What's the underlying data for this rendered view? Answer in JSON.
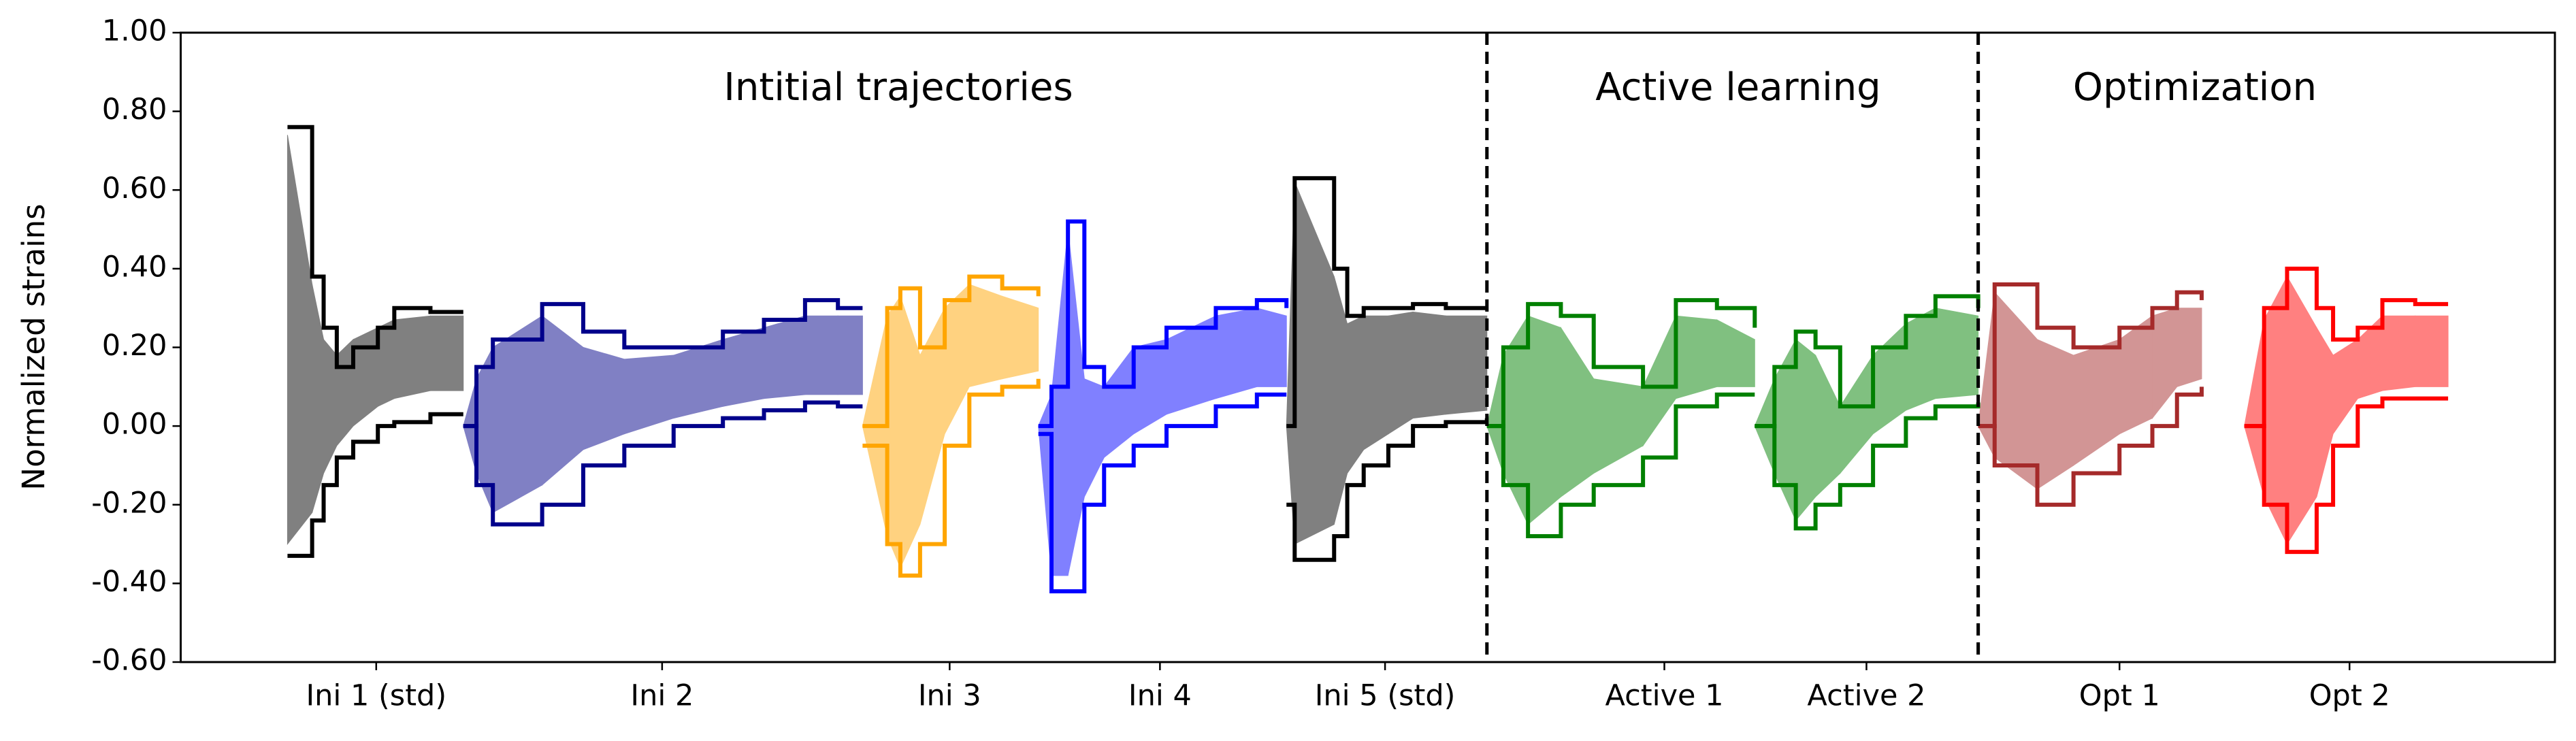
{
  "chart_data": {
    "type": "envelope",
    "y_label": "Normalized strains",
    "ylim": [
      -0.6,
      1.0
    ],
    "yticks": [
      {
        "value": -0.6,
        "label": "-0.60"
      },
      {
        "value": -0.4,
        "label": "-0.40"
      },
      {
        "value": -0.2,
        "label": "-0.20"
      },
      {
        "value": 0,
        "label": "0.00"
      },
      {
        "value": 0.2,
        "label": "0.20"
      },
      {
        "value": 0.4,
        "label": "0.40"
      },
      {
        "value": 0.6,
        "label": "0.60"
      },
      {
        "value": 0.8,
        "label": "0.80"
      },
      {
        "value": 1.0,
        "label": "1.00"
      }
    ],
    "xlim": [
      0,
      1445
    ],
    "xticks": [
      {
        "value": 119,
        "label": "Ini 1 (std)"
      },
      {
        "value": 293,
        "label": "Ini 2"
      },
      {
        "value": 468,
        "label": "Ini 3"
      },
      {
        "value": 596,
        "label": "Ini 4"
      },
      {
        "value": 733,
        "label": "Ini 5 (std)"
      },
      {
        "value": 903,
        "label": "Active 1"
      },
      {
        "value": 1026,
        "label": "Active 2"
      },
      {
        "value": 1180,
        "label": "Opt 1"
      },
      {
        "value": 1320,
        "label": "Opt 2"
      }
    ],
    "dividers": [
      795,
      1094
    ],
    "sections": [
      "Intitial trajectories",
      "Active learning",
      "Optimization"
    ],
    "series": [
      {
        "line_color": "#000000",
        "fill_color": "#808080",
        "x": [
          65,
          80,
          87,
          95,
          105,
          120,
          130,
          152,
          172
        ],
        "upper": [
          0.76,
          0.38,
          0.25,
          0.15,
          0.2,
          0.25,
          0.3,
          0.29,
          0.29
        ],
        "lower": [
          -0.33,
          -0.24,
          -0.15,
          -0.08,
          -0.04,
          0.0,
          0.01,
          0.03,
          0.03
        ],
        "fill_upper": [
          0.74,
          0.36,
          0.22,
          0.18,
          0.22,
          0.25,
          0.27,
          0.28,
          0.28
        ],
        "fill_lower": [
          -0.3,
          -0.22,
          -0.12,
          -0.05,
          0.0,
          0.05,
          0.07,
          0.09,
          0.09
        ]
      },
      {
        "line_color": "#00008b",
        "fill_color": "#8080c4",
        "x": [
          172,
          180,
          190,
          220,
          245,
          270,
          300,
          330,
          355,
          380,
          400,
          415
        ],
        "upper": [
          0.0,
          0.15,
          0.22,
          0.31,
          0.24,
          0.2,
          0.2,
          0.24,
          0.27,
          0.32,
          0.3,
          0.3
        ],
        "lower": [
          0.0,
          -0.15,
          -0.25,
          -0.2,
          -0.1,
          -0.05,
          0.0,
          0.02,
          0.04,
          0.06,
          0.05,
          0.05
        ],
        "fill_upper": [
          0.0,
          0.12,
          0.2,
          0.28,
          0.2,
          0.17,
          0.18,
          0.22,
          0.25,
          0.28,
          0.28,
          0.28
        ],
        "fill_lower": [
          0.0,
          -0.12,
          -0.22,
          -0.15,
          -0.06,
          -0.02,
          0.02,
          0.05,
          0.07,
          0.08,
          0.08,
          0.08
        ]
      },
      {
        "line_color": "#ffa500",
        "fill_color": "#ffd280",
        "x": [
          415,
          430,
          438,
          450,
          465,
          480,
          500,
          522
        ],
        "upper": [
          0.0,
          0.3,
          0.35,
          0.2,
          0.32,
          0.38,
          0.35,
          0.33
        ],
        "lower": [
          -0.05,
          -0.3,
          -0.38,
          -0.3,
          -0.05,
          0.08,
          0.1,
          0.12
        ],
        "fill_upper": [
          0.0,
          0.28,
          0.33,
          0.18,
          0.3,
          0.36,
          0.33,
          0.3
        ],
        "fill_lower": [
          0.0,
          -0.28,
          -0.36,
          -0.25,
          -0.02,
          0.1,
          0.12,
          0.14
        ]
      },
      {
        "line_color": "#0000ff",
        "fill_color": "#8080ff",
        "x": [
          522,
          530,
          540,
          550,
          562,
          580,
          600,
          630,
          655,
          673
        ],
        "upper": [
          0.0,
          0.1,
          0.52,
          0.15,
          0.1,
          0.2,
          0.25,
          0.3,
          0.32,
          0.3
        ],
        "lower": [
          -0.02,
          -0.42,
          -0.42,
          -0.2,
          -0.1,
          -0.05,
          0.0,
          0.05,
          0.08,
          0.08
        ],
        "fill_upper": [
          0.0,
          0.08,
          0.5,
          0.12,
          0.1,
          0.2,
          0.22,
          0.28,
          0.3,
          0.28
        ],
        "fill_lower": [
          0.0,
          -0.38,
          -0.38,
          -0.18,
          -0.08,
          -0.02,
          0.03,
          0.07,
          0.1,
          0.1
        ]
      },
      {
        "line_color": "#000000",
        "fill_color": "#808080",
        "x": [
          673,
          678,
          702,
          710,
          720,
          735,
          750,
          770,
          795
        ],
        "upper": [
          0.0,
          0.63,
          0.4,
          0.28,
          0.3,
          0.3,
          0.31,
          0.3,
          0.3
        ],
        "lower": [
          -0.2,
          -0.34,
          -0.28,
          -0.15,
          -0.1,
          -0.05,
          0.0,
          0.01,
          0.02
        ],
        "fill_upper": [
          0.0,
          0.62,
          0.38,
          0.26,
          0.28,
          0.28,
          0.29,
          0.28,
          0.28
        ],
        "fill_lower": [
          0.0,
          -0.3,
          -0.25,
          -0.12,
          -0.06,
          -0.02,
          0.02,
          0.03,
          0.04
        ]
      },
      {
        "line_color": "#008000",
        "fill_color": "#80c080",
        "x": [
          795,
          805,
          820,
          840,
          860,
          890,
          910,
          935,
          958
        ],
        "upper": [
          0.0,
          0.2,
          0.31,
          0.28,
          0.15,
          0.1,
          0.32,
          0.3,
          0.25
        ],
        "lower": [
          0.0,
          -0.15,
          -0.28,
          -0.2,
          -0.15,
          -0.08,
          0.05,
          0.08,
          0.08
        ],
        "fill_upper": [
          0.0,
          0.18,
          0.28,
          0.25,
          0.12,
          0.1,
          0.28,
          0.27,
          0.22
        ],
        "fill_lower": [
          0.0,
          -0.12,
          -0.25,
          -0.18,
          -0.12,
          -0.05,
          0.07,
          0.1,
          0.1
        ]
      },
      {
        "line_color": "#008000",
        "fill_color": "#80c080",
        "x": [
          958,
          970,
          983,
          995,
          1010,
          1030,
          1050,
          1068,
          1094
        ],
        "upper": [
          0.0,
          0.15,
          0.24,
          0.2,
          0.05,
          0.2,
          0.28,
          0.33,
          0.3
        ],
        "lower": [
          0.0,
          -0.15,
          -0.26,
          -0.2,
          -0.15,
          -0.05,
          0.02,
          0.05,
          0.06
        ],
        "fill_upper": [
          0.0,
          0.12,
          0.22,
          0.18,
          0.05,
          0.18,
          0.26,
          0.3,
          0.28
        ],
        "fill_lower": [
          0.0,
          -0.12,
          -0.24,
          -0.18,
          -0.12,
          -0.02,
          0.04,
          0.07,
          0.08
        ]
      },
      {
        "line_color": "#a52a2a",
        "fill_color": "#d29595",
        "x": [
          1094,
          1104,
          1130,
          1152,
          1180,
          1200,
          1215,
          1230
        ],
        "upper": [
          0.0,
          0.36,
          0.25,
          0.2,
          0.25,
          0.3,
          0.34,
          0.32
        ],
        "lower": [
          0.0,
          -0.1,
          -0.2,
          -0.12,
          -0.05,
          0.0,
          0.08,
          0.1
        ],
        "fill_upper": [
          0.0,
          0.34,
          0.22,
          0.18,
          0.22,
          0.28,
          0.3,
          0.3
        ],
        "fill_lower": [
          0.0,
          -0.08,
          -0.16,
          -0.1,
          -0.02,
          0.02,
          0.1,
          0.12
        ]
      },
      {
        "line_color": "#ff0000",
        "fill_color": "#ff8080",
        "x": [
          1256,
          1268,
          1282,
          1300,
          1310,
          1325,
          1340,
          1360,
          1380
        ],
        "upper": [
          0.0,
          0.3,
          0.4,
          0.3,
          0.22,
          0.25,
          0.32,
          0.31,
          0.31
        ],
        "lower": [
          0.0,
          -0.2,
          -0.32,
          -0.2,
          -0.05,
          0.05,
          0.07,
          0.07,
          0.07
        ],
        "fill_upper": [
          0.0,
          0.27,
          0.38,
          0.25,
          0.18,
          0.22,
          0.28,
          0.28,
          0.28
        ],
        "fill_lower": [
          0.0,
          -0.18,
          -0.3,
          -0.18,
          -0.02,
          0.07,
          0.09,
          0.1,
          0.1
        ]
      }
    ]
  }
}
